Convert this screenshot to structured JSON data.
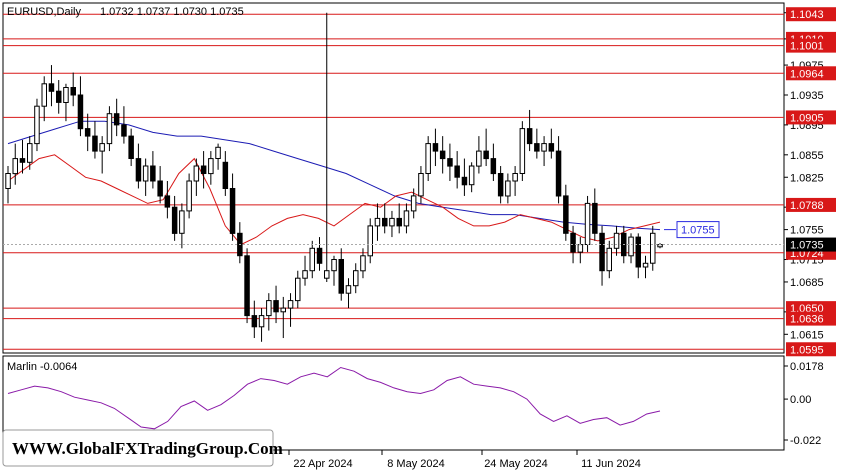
{
  "header": {
    "symbol_label": "EURUSD,Daily",
    "ohlc_label": "1.0732 1.0737 1.0730 1.0735"
  },
  "indicator": {
    "label": "Marlin -0.0064",
    "ticks": [
      "0.0178",
      "0.00",
      "-0.022"
    ],
    "color": "#8a1aa8"
  },
  "watermark": "WWW.GlobalFXTradingGroup.Com",
  "colors": {
    "bull": "#ffffff",
    "bear": "#000000",
    "ma_slow": "#1c1cb4",
    "ma_fast": "#d81818",
    "level": "#d81818",
    "current_price": "#000000",
    "target_line": "#2a2ae0"
  },
  "chart_data": {
    "type": "candlestick",
    "symbol": "EURUSD",
    "timeframe": "Daily",
    "x_labels": [
      "22 Apr 2024",
      "8 May 2024",
      "24 May 2024",
      "11 Jun 2024"
    ],
    "y_ticks": [
      "1.1045",
      "1.1010",
      "1.0975",
      "1.0935",
      "1.0895",
      "1.0855",
      "1.0825",
      "1.0785",
      "1.0755",
      "1.0715",
      "1.0685",
      "1.0645",
      "1.0615"
    ],
    "ylim": [
      1.059,
      1.1058
    ],
    "levels": [
      "1.1043",
      "1.1010",
      "1.1001",
      "1.0964",
      "1.0905",
      "1.0788",
      "1.0724",
      "1.0650",
      "1.0636",
      "1.0595"
    ],
    "current_price": "1.0735",
    "target_label": "1.0755",
    "candles": [
      [
        1.081,
        1.084,
        1.079,
        1.083
      ],
      [
        1.083,
        1.087,
        1.0815,
        1.085
      ],
      [
        1.085,
        1.0875,
        1.083,
        1.0845
      ],
      [
        1.0845,
        1.088,
        1.0835,
        1.087
      ],
      [
        1.087,
        1.093,
        1.086,
        1.092
      ],
      [
        1.092,
        1.096,
        1.09,
        1.095
      ],
      [
        1.095,
        1.0975,
        1.092,
        1.094
      ],
      [
        1.094,
        1.0955,
        1.091,
        1.0925
      ],
      [
        1.0925,
        1.095,
        1.09,
        1.0945
      ],
      [
        1.0945,
        1.0965,
        1.092,
        1.0935
      ],
      [
        1.0935,
        1.096,
        1.088,
        1.089
      ],
      [
        1.089,
        1.091,
        1.086,
        1.088
      ],
      [
        1.088,
        1.09,
        1.085,
        1.086
      ],
      [
        1.086,
        1.088,
        1.083,
        1.087
      ],
      [
        1.087,
        1.092,
        1.086,
        1.091
      ],
      [
        1.091,
        1.093,
        1.088,
        1.0895
      ],
      [
        1.0895,
        1.092,
        1.087,
        1.088
      ],
      [
        1.088,
        1.089,
        1.084,
        1.085
      ],
      [
        1.085,
        1.087,
        1.081,
        1.082
      ],
      [
        1.082,
        1.085,
        1.08,
        1.084
      ],
      [
        1.084,
        1.086,
        1.081,
        1.082
      ],
      [
        1.082,
        1.084,
        1.079,
        1.08
      ],
      [
        1.08,
        1.082,
        1.077,
        1.0785
      ],
      [
        1.0785,
        1.08,
        1.074,
        1.075
      ],
      [
        1.075,
        1.079,
        1.073,
        1.078
      ],
      [
        1.078,
        1.083,
        1.077,
        1.082
      ],
      [
        1.082,
        1.085,
        1.08,
        1.084
      ],
      [
        1.084,
        1.086,
        1.081,
        1.083
      ],
      [
        1.083,
        1.086,
        1.0815,
        1.085
      ],
      [
        1.085,
        1.087,
        1.0835,
        1.0865
      ],
      [
        1.0845,
        1.086,
        1.08,
        1.081
      ],
      [
        1.081,
        1.083,
        1.074,
        1.075
      ],
      [
        1.075,
        1.0765,
        1.071,
        1.072
      ],
      [
        1.072,
        1.073,
        1.063,
        1.064
      ],
      [
        1.064,
        1.066,
        1.061,
        1.0625
      ],
      [
        1.0625,
        1.065,
        1.0605,
        1.064
      ],
      [
        1.064,
        1.067,
        1.062,
        1.066
      ],
      [
        1.066,
        1.068,
        1.063,
        1.0645
      ],
      [
        1.0645,
        1.0665,
        1.061,
        1.065
      ],
      [
        1.065,
        1.067,
        1.0625,
        1.066
      ],
      [
        1.066,
        1.07,
        1.065,
        1.069
      ],
      [
        1.069,
        1.072,
        1.068,
        1.07
      ],
      [
        1.07,
        1.074,
        1.069,
        1.073
      ],
      [
        1.073,
        1.0745,
        1.07,
        1.071
      ],
      [
        1.069,
        1.1045,
        1.0685,
        1.07
      ],
      [
        1.07,
        1.072,
        1.068,
        1.0715
      ],
      [
        1.0715,
        1.073,
        1.066,
        1.067
      ],
      [
        1.067,
        1.069,
        1.065,
        1.068
      ],
      [
        1.068,
        1.071,
        1.067,
        1.07
      ],
      [
        1.07,
        1.073,
        1.069,
        1.072
      ],
      [
        1.072,
        1.077,
        1.071,
        1.076
      ],
      [
        1.076,
        1.079,
        1.074,
        1.077
      ],
      [
        1.077,
        1.079,
        1.075,
        1.076
      ],
      [
        1.076,
        1.078,
        1.0745,
        1.077
      ],
      [
        1.077,
        1.079,
        1.075,
        1.076
      ],
      [
        1.076,
        1.079,
        1.075,
        1.078
      ],
      [
        1.078,
        1.081,
        1.077,
        1.08
      ],
      [
        1.08,
        1.084,
        1.079,
        1.083
      ],
      [
        1.083,
        1.088,
        1.082,
        1.087
      ],
      [
        1.087,
        1.089,
        1.084,
        1.086
      ],
      [
        1.086,
        1.088,
        1.083,
        1.085
      ],
      [
        1.085,
        1.087,
        1.082,
        1.084
      ],
      [
        1.084,
        1.086,
        1.081,
        1.0825
      ],
      [
        1.0825,
        1.085,
        1.08,
        1.0815
      ],
      [
        1.0815,
        1.0845,
        1.0805,
        1.084
      ],
      [
        1.084,
        1.088,
        1.083,
        1.086
      ],
      [
        1.086,
        1.089,
        1.084,
        1.085
      ],
      [
        1.085,
        1.087,
        1.082,
        1.083
      ],
      [
        1.083,
        1.084,
        1.079,
        1.08
      ],
      [
        1.08,
        1.083,
        1.079,
        1.082
      ],
      [
        1.082,
        1.084,
        1.08,
        1.083
      ],
      [
        1.083,
        1.09,
        1.082,
        1.089
      ],
      [
        1.089,
        1.0915,
        1.086,
        1.087
      ],
      [
        1.087,
        1.089,
        1.085,
        1.086
      ],
      [
        1.086,
        1.088,
        1.084,
        1.087
      ],
      [
        1.087,
        1.089,
        1.085,
        1.086
      ],
      [
        1.086,
        1.088,
        1.079,
        1.08
      ],
      [
        1.08,
        1.0815,
        1.074,
        1.075
      ],
      [
        1.075,
        1.076,
        1.071,
        1.0725
      ],
      [
        1.0725,
        1.0745,
        1.071,
        1.0735
      ],
      [
        1.0735,
        1.08,
        1.0725,
        1.079
      ],
      [
        1.079,
        1.081,
        1.074,
        1.075
      ],
      [
        1.075,
        1.076,
        1.068,
        1.07
      ],
      [
        1.07,
        1.074,
        1.069,
        1.073
      ],
      [
        1.073,
        1.076,
        1.072,
        1.075
      ],
      [
        1.075,
        1.076,
        1.071,
        1.072
      ],
      [
        1.072,
        1.075,
        1.071,
        1.0745
      ],
      [
        1.0745,
        1.075,
        1.069,
        1.0705
      ],
      [
        1.0705,
        1.072,
        1.069,
        1.071
      ],
      [
        1.071,
        1.076,
        1.07,
        1.075
      ],
      [
        1.0732,
        1.0737,
        1.073,
        1.0735
      ]
    ],
    "ma_slow": [
      1.087,
      1.088,
      1.089,
      1.09,
      1.09,
      1.0895,
      1.0885,
      1.088,
      1.088,
      1.0875,
      1.087,
      1.086,
      1.085,
      1.084,
      1.083,
      1.0815,
      1.08,
      1.079,
      1.0785,
      1.078,
      1.0775,
      1.0775,
      1.077,
      1.0765,
      1.0762,
      1.076,
      1.0757,
      1.0755
    ],
    "ma_fast": [
      1.082,
      1.0835,
      1.085,
      1.0855,
      1.084,
      1.0825,
      1.082,
      1.081,
      1.08,
      1.079,
      1.0795,
      1.083,
      1.085,
      1.081,
      1.076,
      1.0735,
      1.0745,
      1.076,
      1.077,
      1.0775,
      1.077,
      1.076,
      1.0775,
      1.079,
      1.0785,
      1.08,
      1.0805,
      1.0795,
      1.0785,
      1.077,
      1.076,
      1.076,
      1.0765,
      1.0775,
      1.077,
      1.0765,
      1.0755,
      1.0745,
      1.074,
      1.0745,
      1.0755,
      1.076,
      1.0765
    ],
    "marlin": [
      0.003,
      0.005,
      0.007,
      0.006,
      0.004,
      0.001,
      -0.0005,
      -0.002,
      -0.005,
      -0.01,
      -0.015,
      -0.016,
      -0.012,
      -0.004,
      -0.001,
      -0.006,
      -0.003,
      0.002,
      0.008,
      0.011,
      0.01,
      0.008,
      0.012,
      0.014,
      0.012,
      0.017,
      0.015,
      0.011,
      0.009,
      0.006,
      0.004,
      0.003,
      0.005,
      0.01,
      0.012,
      0.008,
      0.007,
      0.006,
      0.004,
      0.0,
      -0.008,
      -0.012,
      -0.009,
      -0.013,
      -0.011,
      -0.01,
      -0.014,
      -0.012,
      -0.008,
      -0.0064
    ]
  }
}
